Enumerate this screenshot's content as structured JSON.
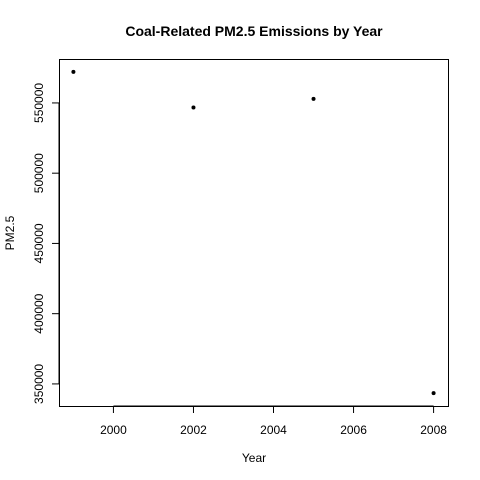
{
  "chart_data": {
    "type": "scatter",
    "title": "Coal-Related PM2.5 Emissions by Year",
    "xlabel": "Year",
    "ylabel": "PM2.5",
    "x": [
      1999,
      2002,
      2005,
      2008
    ],
    "y": [
      572126,
      546789,
      552881,
      343432
    ],
    "xlim": [
      1999,
      2008
    ],
    "ylim": [
      343432,
      572126
    ],
    "xticks": [
      2000,
      2002,
      2004,
      2006,
      2008
    ],
    "xtick_labels": [
      "2000",
      "2002",
      "2004",
      "2006",
      "2008"
    ],
    "yticks": [
      350000,
      400000,
      450000,
      500000,
      550000
    ],
    "ytick_labels": [
      "350000",
      "400000",
      "450000",
      "500000",
      "550000"
    ],
    "grid": false,
    "legend": "none",
    "point_color": "#000000"
  }
}
